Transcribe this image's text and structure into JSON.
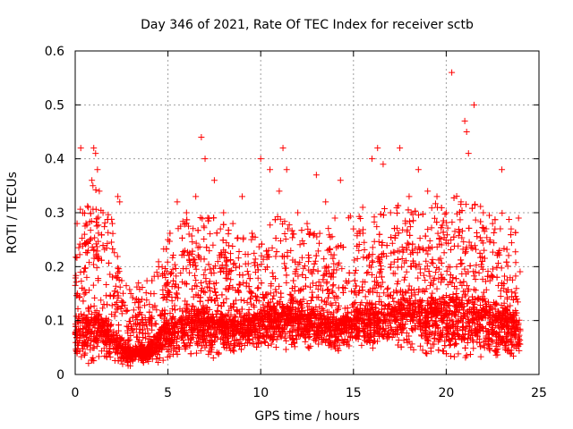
{
  "chart_data": {
    "type": "scatter",
    "title": "Day 346 of 2021, Rate Of TEC Index for receiver sctb",
    "xlabel": "GPS time / hours",
    "ylabel": "ROTI / TECUs",
    "xlim": [
      0,
      25
    ],
    "ylim": [
      0,
      0.6
    ],
    "x_ticks": [
      0,
      5,
      10,
      15,
      20,
      25
    ],
    "y_ticks": [
      0,
      0.1,
      0.2,
      0.3,
      0.4,
      0.5,
      0.6
    ],
    "x_tick_labels": [
      "0",
      "5",
      "10",
      "15",
      "20",
      "25"
    ],
    "y_tick_labels": [
      "0",
      "0.1",
      "0.2",
      "0.3",
      "0.4",
      "0.5",
      "0.6"
    ],
    "grid": true,
    "marker": "+",
    "marker_color": "#ff0000",
    "series": [
      {
        "name": "ROTI",
        "points": [
          [
            0.1,
            0.28
          ],
          [
            0.3,
            0.42
          ],
          [
            0.5,
            0.26
          ],
          [
            0.9,
            0.36
          ],
          [
            1.0,
            0.42
          ],
          [
            1.1,
            0.41
          ],
          [
            1.2,
            0.38
          ],
          [
            1.3,
            0.34
          ],
          [
            1.5,
            0.3
          ],
          [
            2.0,
            0.28
          ],
          [
            2.3,
            0.33
          ],
          [
            2.4,
            0.32
          ],
          [
            3.0,
            0.15
          ],
          [
            3.3,
            0.14
          ],
          [
            4.0,
            0.13
          ],
          [
            4.5,
            0.2
          ],
          [
            5.0,
            0.25
          ],
          [
            5.5,
            0.32
          ],
          [
            6.0,
            0.3
          ],
          [
            6.5,
            0.33
          ],
          [
            6.8,
            0.44
          ],
          [
            7.0,
            0.4
          ],
          [
            7.5,
            0.36
          ],
          [
            8.0,
            0.3
          ],
          [
            8.5,
            0.28
          ],
          [
            9.0,
            0.33
          ],
          [
            9.5,
            0.25
          ],
          [
            10.0,
            0.4
          ],
          [
            10.5,
            0.38
          ],
          [
            11.0,
            0.34
          ],
          [
            11.2,
            0.42
          ],
          [
            11.4,
            0.38
          ],
          [
            12.0,
            0.3
          ],
          [
            12.5,
            0.28
          ],
          [
            13.0,
            0.37
          ],
          [
            13.5,
            0.32
          ],
          [
            14.0,
            0.29
          ],
          [
            14.3,
            0.36
          ],
          [
            15.0,
            0.27
          ],
          [
            15.5,
            0.31
          ],
          [
            16.0,
            0.4
          ],
          [
            16.3,
            0.42
          ],
          [
            16.6,
            0.39
          ],
          [
            17.0,
            0.3
          ],
          [
            17.5,
            0.42
          ],
          [
            18.0,
            0.33
          ],
          [
            18.5,
            0.38
          ],
          [
            19.0,
            0.34
          ],
          [
            19.5,
            0.33
          ],
          [
            20.0,
            0.3
          ],
          [
            20.3,
            0.56
          ],
          [
            20.8,
            0.32
          ],
          [
            21.0,
            0.47
          ],
          [
            21.1,
            0.45
          ],
          [
            21.2,
            0.41
          ],
          [
            21.5,
            0.5
          ],
          [
            22.0,
            0.3
          ],
          [
            22.5,
            0.28
          ],
          [
            23.0,
            0.38
          ],
          [
            23.5,
            0.27
          ],
          [
            23.9,
            0.29
          ]
        ],
        "envelope": {
          "description": "dense cloud of + markers; upper bound of the dense band by hour",
          "hours": [
            0,
            1,
            2,
            2.5,
            3,
            4,
            5,
            6,
            7,
            8,
            9,
            10,
            11,
            12,
            13,
            14,
            15,
            16,
            17,
            18,
            19,
            20,
            21,
            22,
            23,
            24
          ],
          "upper": [
            0.24,
            0.3,
            0.24,
            0.14,
            0.11,
            0.12,
            0.2,
            0.24,
            0.24,
            0.22,
            0.2,
            0.22,
            0.24,
            0.22,
            0.22,
            0.21,
            0.24,
            0.26,
            0.25,
            0.27,
            0.26,
            0.26,
            0.28,
            0.26,
            0.24,
            0.22
          ],
          "lower": [
            0.02,
            0.01,
            0.01,
            0.01,
            0.01,
            0.02,
            0.02,
            0.03,
            0.03,
            0.03,
            0.04,
            0.04,
            0.04,
            0.04,
            0.04,
            0.04,
            0.04,
            0.04,
            0.04,
            0.03,
            0.02,
            0.02,
            0.02,
            0.02,
            0.02,
            0.02
          ],
          "core": [
            0.08,
            0.1,
            0.07,
            0.05,
            0.04,
            0.05,
            0.08,
            0.1,
            0.1,
            0.09,
            0.09,
            0.1,
            0.11,
            0.1,
            0.1,
            0.09,
            0.1,
            0.11,
            0.11,
            0.12,
            0.11,
            0.11,
            0.12,
            0.11,
            0.1,
            0.09
          ]
        }
      }
    ]
  }
}
